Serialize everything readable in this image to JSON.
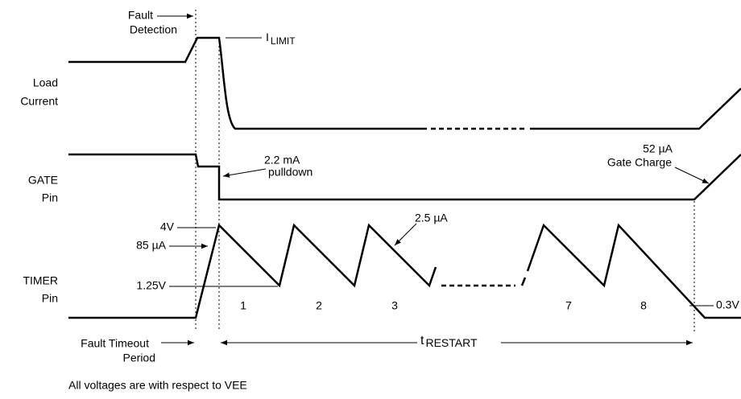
{
  "signals": [
    {
      "label": [
        "Load",
        "Current"
      ]
    },
    {
      "label": [
        "GATE",
        "Pin"
      ]
    },
    {
      "label": [
        "TIMER",
        "Pin"
      ]
    }
  ],
  "annotations": {
    "fault_detection": [
      "Fault",
      "Detection"
    ],
    "ilimit": {
      "symbol": "I",
      "subscript": "LIMIT"
    },
    "pulldown": [
      "2.2 mA",
      "pulldown"
    ],
    "gate_charge": [
      "52 µA",
      "Gate Charge"
    ],
    "timer_high": "4V",
    "timer_charge": "85 µA",
    "timer_discharge": "2.5 µA",
    "timer_low": "1.25V",
    "timer_end": "0.3V",
    "fault_timeout": [
      "Fault Timeout",
      "Period"
    ],
    "trestart": {
      "symbol": "t",
      "subscript": "RESTART"
    }
  },
  "cycles": [
    "1",
    "2",
    "3",
    "7",
    "8"
  ],
  "footnote": "All voltages are with respect to VEE"
}
